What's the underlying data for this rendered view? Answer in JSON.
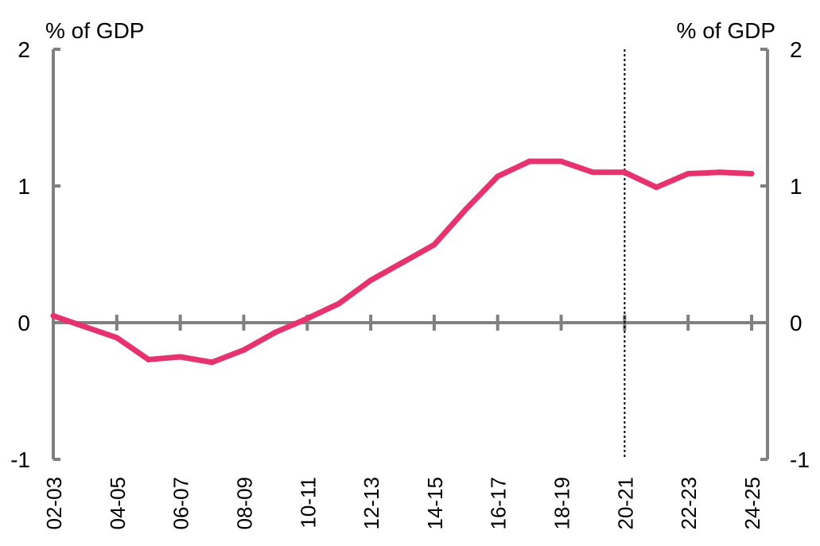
{
  "chart_data": {
    "type": "line",
    "title": "",
    "left_axis_unit": "% of GDP",
    "right_axis_unit": "% of GDP",
    "ylim": [
      -1,
      2
    ],
    "yticks": [
      -1,
      0,
      1,
      2
    ],
    "ytick_labels": [
      "-1",
      "0",
      "1",
      "2"
    ],
    "categories": [
      "02-03",
      "03-04",
      "04-05",
      "05-06",
      "06-07",
      "07-08",
      "08-09",
      "09-10",
      "10-11",
      "11-12",
      "12-13",
      "13-14",
      "14-15",
      "15-16",
      "16-17",
      "17-18",
      "18-19",
      "19-20",
      "20-21",
      "21-22",
      "22-23",
      "23-24",
      "24-25"
    ],
    "x_tick_labels": [
      "02-03",
      "04-05",
      "06-07",
      "08-09",
      "10-11",
      "12-13",
      "14-15",
      "16-17",
      "18-19",
      "20-21",
      "22-23",
      "24-25"
    ],
    "series": [
      {
        "values": [
          0.05,
          -0.03,
          -0.11,
          -0.27,
          -0.25,
          -0.29,
          -0.2,
          -0.07,
          0.03,
          0.14,
          0.31,
          0.44,
          0.57,
          0.83,
          1.07,
          1.18,
          1.18,
          1.1,
          1.1,
          0.99,
          1.09,
          1.1,
          1.09
        ],
        "color": "#e6336f"
      }
    ],
    "divider_at": "20-21",
    "divider_style": "dotted",
    "grid": false,
    "legend": "none",
    "colors": {
      "axis": "#808080",
      "line": "#e6336f",
      "divider": "#000000"
    }
  }
}
